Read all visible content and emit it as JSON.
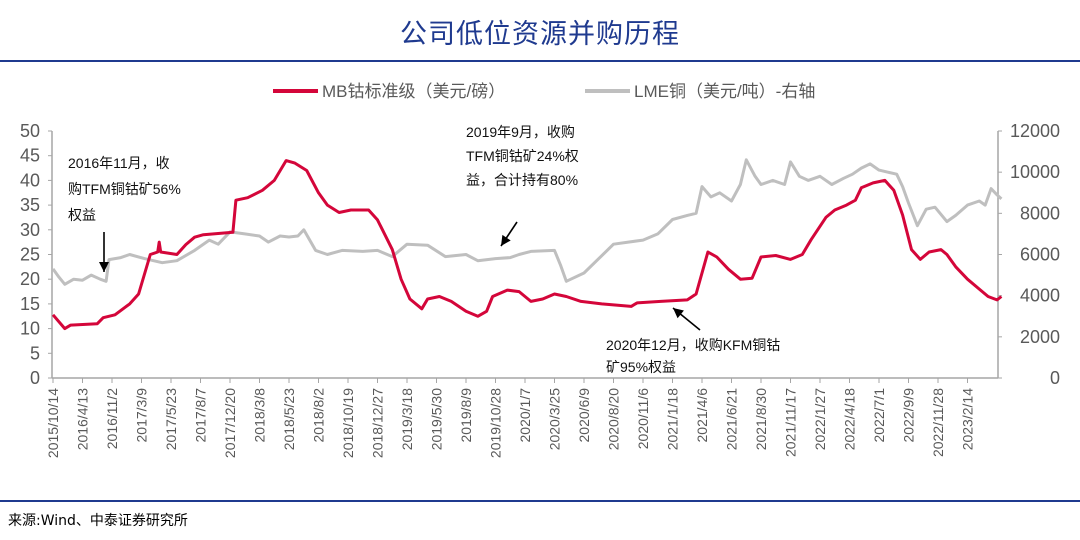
{
  "title": "公司低位资源并购历程",
  "source": "来源:Wind、中泰证券研究所",
  "chart_data": {
    "type": "line",
    "legend_position": "top",
    "legend": [
      "MB钴标准级（美元/磅）",
      "LME铜（美元/吨）-右轴"
    ],
    "colors": {
      "mb": "#d4063a",
      "lme": "#bfbfbf",
      "axis": "#a6a6a6",
      "text": "#595959",
      "accent": "#1f3a8f"
    },
    "categories": [
      "2015/10/14",
      "2016/4/13",
      "2016/11/2",
      "2017/3/9",
      "2017/5/23",
      "2017/8/7",
      "2017/12/20",
      "2018/3/8",
      "2018/5/23",
      "2018/8/2",
      "2018/10/19",
      "2018/12/27",
      "2019/3/18",
      "2019/5/30",
      "2019/8/9",
      "2019/10/28",
      "2020/1/7",
      "2020/3/25",
      "2020/6/9",
      "2020/8/20",
      "2020/11/6",
      "2021/1/18",
      "2021/4/6",
      "2021/6/21",
      "2021/8/30",
      "2021/11/17",
      "2022/1/27",
      "2022/4/18",
      "2022/7/1",
      "2022/9/9",
      "2022/11/28",
      "2023/2/14"
    ],
    "y_left": {
      "min": 0,
      "max": 50,
      "ticks": [
        "0",
        "5",
        "10",
        "15",
        "20",
        "25",
        "30",
        "35",
        "40",
        "45",
        "50"
      ]
    },
    "y_right": {
      "min": 0,
      "max": 12000,
      "ticks": [
        "0",
        "2000",
        "4000",
        "6000",
        "8000",
        "10000",
        "12000"
      ]
    },
    "series": [
      {
        "name": "MB钴标准级（美元/磅）",
        "axis": "left",
        "points_note": "x = category index",
        "points": [
          [
            0,
            12.8
          ],
          [
            0.4,
            10
          ],
          [
            0.6,
            10.7
          ],
          [
            1.5,
            11
          ],
          [
            1.7,
            12.2
          ],
          [
            2.1,
            12.8
          ],
          [
            2.6,
            15
          ],
          [
            2.9,
            17
          ],
          [
            3.3,
            25
          ],
          [
            3.55,
            25.5
          ],
          [
            3.6,
            27.5
          ],
          [
            3.65,
            25.5
          ],
          [
            4.2,
            25
          ],
          [
            4.5,
            27
          ],
          [
            4.8,
            28.5
          ],
          [
            5.1,
            29
          ],
          [
            6.1,
            29.5
          ],
          [
            6.2,
            36
          ],
          [
            6.6,
            36.5
          ],
          [
            7.1,
            38
          ],
          [
            7.5,
            40
          ],
          [
            7.9,
            44
          ],
          [
            8.2,
            43.5
          ],
          [
            8.6,
            42
          ],
          [
            9.0,
            37.5
          ],
          [
            9.3,
            35
          ],
          [
            9.7,
            33.5
          ],
          [
            10.1,
            34
          ],
          [
            10.7,
            34
          ],
          [
            11.0,
            32
          ],
          [
            11.5,
            26
          ],
          [
            11.8,
            20
          ],
          [
            12.1,
            16
          ],
          [
            12.5,
            14
          ],
          [
            12.7,
            16
          ],
          [
            13.1,
            16.5
          ],
          [
            13.5,
            15.5
          ],
          [
            14.0,
            13.5
          ],
          [
            14.4,
            12.5
          ],
          [
            14.7,
            13.5
          ],
          [
            14.9,
            16.5
          ],
          [
            15.4,
            17.8
          ],
          [
            15.8,
            17.5
          ],
          [
            16.2,
            15.5
          ],
          [
            16.6,
            16
          ],
          [
            17.0,
            17
          ],
          [
            17.4,
            16.5
          ],
          [
            17.9,
            15.5
          ],
          [
            18.6,
            15
          ],
          [
            19.6,
            14.5
          ],
          [
            19.8,
            15.2
          ],
          [
            20.6,
            15.5
          ],
          [
            21.5,
            15.8
          ],
          [
            21.8,
            17
          ],
          [
            22.2,
            25.5
          ],
          [
            22.5,
            24.5
          ],
          [
            22.9,
            22
          ],
          [
            23.3,
            20
          ],
          [
            23.7,
            20.2
          ],
          [
            24.0,
            24.5
          ],
          [
            24.5,
            24.8
          ],
          [
            25.0,
            24
          ],
          [
            25.4,
            25
          ],
          [
            25.7,
            28
          ],
          [
            26.2,
            32.5
          ],
          [
            26.5,
            34
          ],
          [
            26.9,
            35
          ],
          [
            27.2,
            36
          ],
          [
            27.4,
            38.5
          ],
          [
            27.8,
            39.5
          ],
          [
            28.2,
            40
          ],
          [
            28.5,
            38
          ],
          [
            28.8,
            33
          ],
          [
            29.1,
            26
          ],
          [
            29.4,
            24
          ],
          [
            29.7,
            25.5
          ],
          [
            30.1,
            26
          ],
          [
            30.3,
            25
          ],
          [
            30.6,
            22.5
          ],
          [
            31.0,
            20
          ],
          [
            31.4,
            18
          ],
          [
            31.7,
            16.5
          ],
          [
            32.0,
            15.8
          ],
          [
            32.15,
            16.5
          ]
        ]
      },
      {
        "name": "LME铜（美元/吨）-右轴",
        "axis": "right",
        "points_note": "x = category index",
        "points": [
          [
            0,
            5300
          ],
          [
            0.2,
            4900
          ],
          [
            0.4,
            4550
          ],
          [
            0.7,
            4800
          ],
          [
            1.0,
            4750
          ],
          [
            1.3,
            5000
          ],
          [
            1.6,
            4800
          ],
          [
            1.8,
            4700
          ],
          [
            1.9,
            5750
          ],
          [
            2.3,
            5850
          ],
          [
            2.6,
            6000
          ],
          [
            3.1,
            5800
          ],
          [
            3.7,
            5600
          ],
          [
            4.2,
            5700
          ],
          [
            4.8,
            6200
          ],
          [
            5.3,
            6700
          ],
          [
            5.6,
            6500
          ],
          [
            6.0,
            7100
          ],
          [
            6.5,
            7000
          ],
          [
            7.0,
            6900
          ],
          [
            7.3,
            6600
          ],
          [
            7.7,
            6900
          ],
          [
            8.0,
            6850
          ],
          [
            8.3,
            6900
          ],
          [
            8.5,
            7200
          ],
          [
            8.9,
            6200
          ],
          [
            9.3,
            6000
          ],
          [
            9.8,
            6200
          ],
          [
            10.5,
            6150
          ],
          [
            11.0,
            6200
          ],
          [
            11.5,
            5900
          ],
          [
            12.0,
            6500
          ],
          [
            12.7,
            6450
          ],
          [
            13.3,
            5900
          ],
          [
            14.0,
            6000
          ],
          [
            14.4,
            5700
          ],
          [
            15.0,
            5800
          ],
          [
            15.5,
            5850
          ],
          [
            15.8,
            6000
          ],
          [
            16.2,
            6150
          ],
          [
            17.0,
            6200
          ],
          [
            17.2,
            5500
          ],
          [
            17.4,
            4700
          ],
          [
            18.0,
            5100
          ],
          [
            18.5,
            5800
          ],
          [
            19.0,
            6500
          ],
          [
            19.5,
            6600
          ],
          [
            20.0,
            6700
          ],
          [
            20.5,
            7000
          ],
          [
            21.0,
            7700
          ],
          [
            21.5,
            7900
          ],
          [
            21.8,
            8000
          ],
          [
            22.0,
            9300
          ],
          [
            22.3,
            8800
          ],
          [
            22.6,
            9000
          ],
          [
            23.0,
            8600
          ],
          [
            23.3,
            9400
          ],
          [
            23.5,
            10600
          ],
          [
            23.8,
            9800
          ],
          [
            24.0,
            9400
          ],
          [
            24.4,
            9600
          ],
          [
            24.8,
            9400
          ],
          [
            25.0,
            10500
          ],
          [
            25.3,
            9800
          ],
          [
            25.6,
            9600
          ],
          [
            26.0,
            9800
          ],
          [
            26.4,
            9400
          ],
          [
            26.8,
            9700
          ],
          [
            27.1,
            9900
          ],
          [
            27.4,
            10200
          ],
          [
            27.7,
            10400
          ],
          [
            28.0,
            10100
          ],
          [
            28.3,
            10000
          ],
          [
            28.6,
            9900
          ],
          [
            28.8,
            9300
          ],
          [
            29.0,
            8500
          ],
          [
            29.3,
            7400
          ],
          [
            29.6,
            8200
          ],
          [
            29.9,
            8300
          ],
          [
            30.3,
            7600
          ],
          [
            30.6,
            7900
          ],
          [
            31.0,
            8400
          ],
          [
            31.4,
            8600
          ],
          [
            31.6,
            8400
          ],
          [
            31.8,
            9200
          ],
          [
            32.0,
            8900
          ],
          [
            32.15,
            8700
          ]
        ]
      }
    ],
    "annotations": [
      {
        "lines": [
          "2016年11月，收",
          "购TFM铜钴矿56%",
          "权益"
        ]
      },
      {
        "lines": [
          "2019年9月，收购",
          "TFM铜钴矿24%权",
          "益，合计持有80%"
        ]
      },
      {
        "lines": [
          "2020年12月，收购KFM铜钴",
          "矿95%权益"
        ]
      }
    ]
  }
}
